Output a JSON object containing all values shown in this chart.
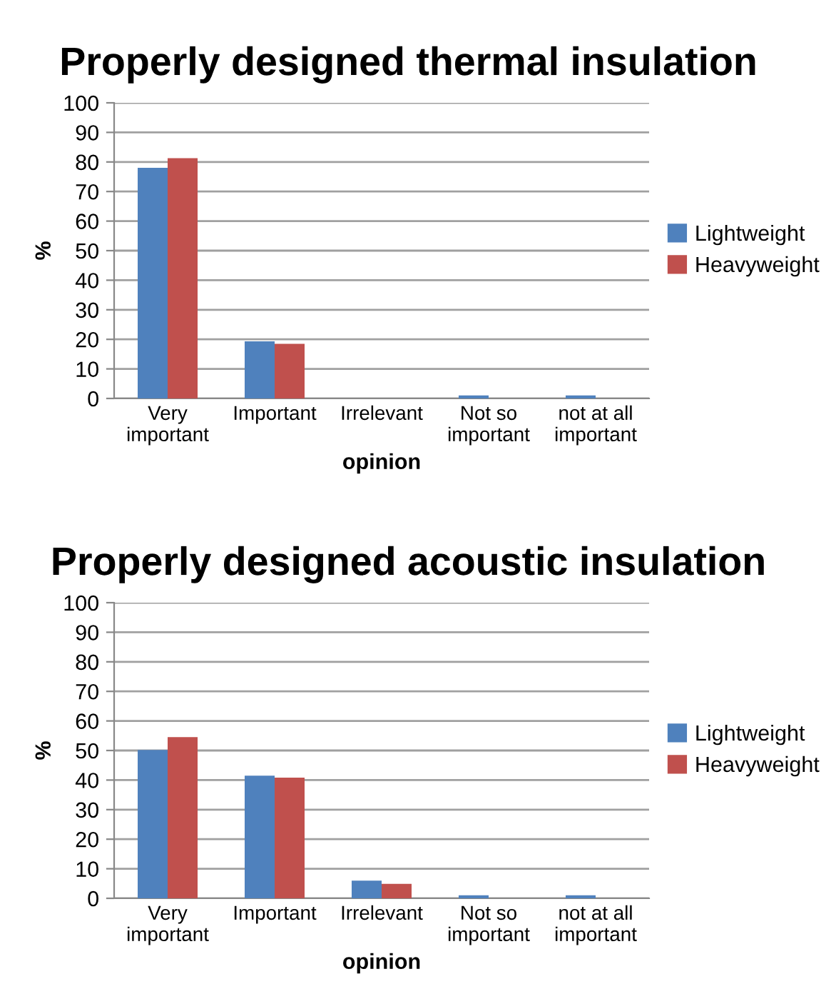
{
  "chart_data": [
    {
      "type": "bar",
      "title": "Properly designed thermal insulation",
      "xlabel": "opinion",
      "ylabel": "%",
      "categories": [
        "Very\nimportant",
        "Important",
        "Irrelevant",
        "Not so\nimportant",
        "not at all\nimportant"
      ],
      "series": [
        {
          "name": "Lightweight",
          "color": "#4f81bd",
          "values": [
            78,
            19.3,
            0,
            1,
            1
          ]
        },
        {
          "name": "Heavyweight",
          "color": "#c0504d",
          "values": [
            81.3,
            18.5,
            0,
            0,
            0
          ]
        }
      ],
      "ylim": [
        0,
        100
      ],
      "yticks": [
        0,
        10,
        20,
        30,
        40,
        50,
        60,
        70,
        80,
        90,
        100
      ],
      "grid": "y",
      "legend": "right"
    },
    {
      "type": "bar",
      "title": "Properly designed acoustic insulation",
      "xlabel": "opinion",
      "ylabel": "%",
      "categories": [
        "Very\nimportant",
        "Important",
        "Irrelevant",
        "Not so\nimportant",
        "not at all\nimportant"
      ],
      "series": [
        {
          "name": "Lightweight",
          "color": "#4f81bd",
          "values": [
            50.2,
            41.5,
            6,
            1,
            1
          ]
        },
        {
          "name": "Heavyweight",
          "color": "#c0504d",
          "values": [
            54.5,
            40.8,
            4.9,
            0,
            0
          ]
        }
      ],
      "ylim": [
        0,
        100
      ],
      "yticks": [
        0,
        10,
        20,
        30,
        40,
        50,
        60,
        70,
        80,
        90,
        100
      ],
      "grid": "y",
      "legend": "right"
    }
  ]
}
